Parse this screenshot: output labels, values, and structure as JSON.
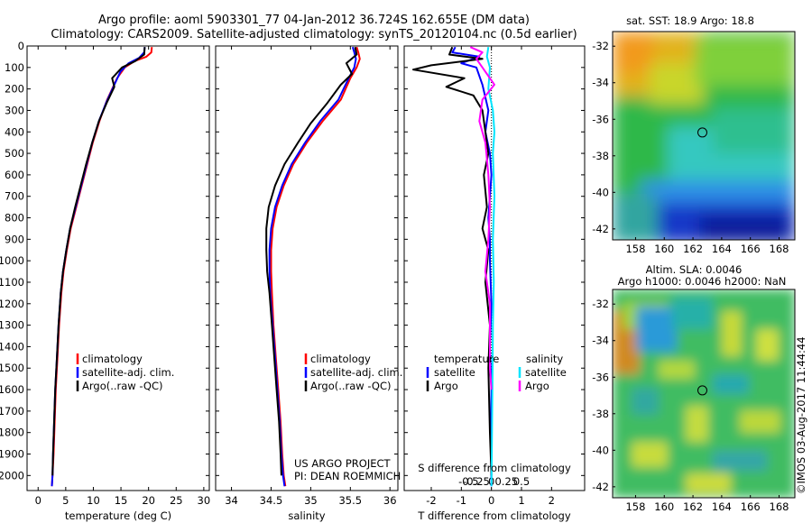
{
  "header": {
    "line1": "Argo profile: aoml 5903301_77 04-Jan-2012 36.724S 162.655E (DM data)",
    "line2": "Climatology: CARS2009. Satellite-adjusted climatology: synTS_20120104.nc (0.5d earlier)"
  },
  "side_label": "©IMOS 03-Aug-2017 11:44:44",
  "project_label": {
    "line1": "US ARGO PROJECT",
    "line2": "PI: DEAN ROEMMICH"
  },
  "colors": {
    "climatology": "#ff0000",
    "satellite": "#0000ff",
    "argo": "#000000",
    "t_sat": "#0000ff",
    "t_argo": "#000000",
    "s_sat": "#00e5ff",
    "s_argo": "#ff00ff"
  },
  "chart_data": [
    {
      "id": "temperature",
      "type": "line",
      "xlabel": "temperature (deg C)",
      "ylabel": "",
      "xlim": [
        -2,
        31
      ],
      "ylim": [
        2070,
        0
      ],
      "xticks": [
        0,
        5,
        10,
        15,
        20,
        25,
        30
      ],
      "yticks": [
        0,
        100,
        200,
        300,
        400,
        500,
        600,
        700,
        800,
        900,
        1000,
        1100,
        1200,
        1300,
        1400,
        1500,
        1600,
        1700,
        1800,
        1900,
        2000
      ],
      "legend": [
        "climatology",
        "satellite-adj. clim.",
        "Argo(..raw -QC)"
      ],
      "series": [
        {
          "name": "climatology",
          "color": "#ff0000",
          "x": [
            20.6,
            20.5,
            19.6,
            17.5,
            15.7,
            14.3,
            12.5,
            11.1,
            9.9,
            8.9,
            7.9,
            6.9,
            5.9,
            5.2,
            4.6,
            4.2,
            3.8,
            3.5,
            3.2,
            3.0,
            2.8,
            2.6,
            2.5
          ],
          "y": [
            5,
            30,
            50,
            70,
            100,
            150,
            250,
            350,
            450,
            550,
            650,
            750,
            850,
            950,
            1050,
            1150,
            1300,
            1450,
            1600,
            1750,
            1900,
            2000,
            2050
          ]
        },
        {
          "name": "satellite-adj. clim.",
          "color": "#0000ff",
          "x": [
            19.3,
            19.2,
            18.3,
            16.4,
            14.9,
            14.0,
            12.4,
            11.0,
            9.8,
            8.8,
            7.8,
            6.8,
            5.8,
            5.1,
            4.5,
            4.1,
            3.7,
            3.4,
            3.1,
            2.9,
            2.7,
            2.6,
            2.5
          ],
          "y": [
            5,
            30,
            55,
            80,
            120,
            170,
            260,
            350,
            450,
            550,
            650,
            750,
            850,
            950,
            1050,
            1150,
            1300,
            1450,
            1600,
            1750,
            1900,
            2000,
            2050
          ]
        },
        {
          "name": "Argo(..raw -QC)",
          "color": "#000000",
          "x": [
            19.3,
            19.2,
            17.6,
            15.2,
            13.4,
            13.8,
            12.5,
            11.0,
            9.8,
            8.7,
            7.7,
            6.7,
            5.8,
            5.1,
            4.5,
            4.1,
            3.7,
            3.4,
            3.1,
            2.9,
            2.7,
            2.6
          ],
          "y": [
            5,
            40,
            70,
            100,
            150,
            190,
            260,
            350,
            450,
            550,
            650,
            750,
            850,
            950,
            1050,
            1150,
            1300,
            1450,
            1600,
            1750,
            1900,
            2000
          ]
        }
      ]
    },
    {
      "id": "salinity",
      "type": "line",
      "xlabel": "salinity",
      "ylabel": "",
      "xlim": [
        33.8,
        36.1
      ],
      "ylim": [
        2070,
        0
      ],
      "xticks": [
        34,
        34.5,
        35,
        35.5,
        36
      ],
      "xticklabels": [
        "34",
        "34.5",
        "35",
        "35.5",
        "36"
      ],
      "legend": [
        "climatology",
        "satellite-adj. clim.",
        "Argo(..raw -QC)"
      ],
      "series": [
        {
          "name": "climatology",
          "color": "#ff0000",
          "x": [
            35.58,
            35.6,
            35.62,
            35.58,
            35.5,
            35.38,
            35.15,
            34.95,
            34.78,
            34.66,
            34.57,
            34.52,
            34.5,
            34.5,
            34.51,
            34.53,
            34.56,
            34.59,
            34.62,
            34.64,
            34.66,
            34.68
          ],
          "y": [
            5,
            30,
            60,
            100,
            150,
            250,
            350,
            450,
            550,
            650,
            750,
            850,
            950,
            1050,
            1150,
            1300,
            1450,
            1600,
            1750,
            1900,
            2000,
            2050
          ]
        },
        {
          "name": "satellite-adj. clim.",
          "color": "#0000ff",
          "x": [
            35.53,
            35.55,
            35.57,
            35.55,
            35.48,
            35.35,
            35.12,
            34.93,
            34.76,
            34.64,
            34.55,
            34.5,
            34.48,
            34.48,
            34.49,
            34.52,
            34.55,
            34.58,
            34.61,
            34.63,
            34.65,
            34.67
          ],
          "y": [
            5,
            30,
            60,
            100,
            150,
            250,
            350,
            450,
            550,
            650,
            750,
            850,
            950,
            1050,
            1150,
            1300,
            1450,
            1600,
            1750,
            1900,
            2000,
            2050
          ]
        },
        {
          "name": "Argo(..raw -QC)",
          "color": "#000000",
          "x": [
            35.56,
            35.58,
            35.45,
            35.52,
            35.38,
            35.2,
            35.0,
            34.84,
            34.67,
            34.55,
            34.47,
            34.44,
            34.44,
            34.45,
            34.48,
            34.51,
            34.54,
            34.57,
            34.6,
            34.62,
            34.63
          ],
          "y": [
            5,
            40,
            80,
            130,
            180,
            270,
            360,
            450,
            550,
            650,
            750,
            850,
            950,
            1050,
            1150,
            1300,
            1450,
            1600,
            1750,
            1900,
            2000
          ]
        }
      ]
    },
    {
      "id": "difference",
      "type": "line",
      "xlabel": "T difference from climatology",
      "top_label": "S difference from climatology",
      "xlim": [
        -2.9,
        3.1
      ],
      "ylim": [
        2070,
        0
      ],
      "xticks": [
        -2,
        -1,
        0,
        1,
        2
      ],
      "xticklabels": [
        "-2",
        "-1",
        "0",
        "1",
        "2"
      ],
      "s_ticklabels": [
        "-0.5",
        "-0.25",
        "0",
        "0.25",
        "0.5"
      ],
      "s_scale": 0.25,
      "legend_groups": [
        "temperature",
        "salinity"
      ],
      "legend": [
        "satellite",
        "Argo",
        "satellite",
        "Argo"
      ],
      "series": [
        {
          "name": "temperature satellite",
          "color": "#0000ff",
          "x": [
            -1.2,
            -1.3,
            -0.4,
            -1.0,
            -0.5,
            -0.3,
            -0.1,
            -0.2,
            -0.05,
            0.0,
            -0.05,
            -0.1,
            -0.05,
            -0.05,
            0.0,
            -0.05,
            0.0,
            -0.02,
            0.0
          ],
          "y": [
            5,
            30,
            50,
            80,
            100,
            180,
            300,
            400,
            500,
            600,
            700,
            800,
            900,
            1000,
            1200,
            1400,
            1600,
            1800,
            2050
          ]
        },
        {
          "name": "temperature Argo",
          "color": "#000000",
          "x": [
            -1.3,
            -1.4,
            -0.3,
            -2.0,
            -2.6,
            -0.9,
            -1.5,
            -0.6,
            -0.3,
            -0.2,
            -0.1,
            -0.25,
            -0.15,
            -0.3,
            -0.1,
            -0.2,
            -0.05,
            -0.1,
            -0.05,
            0.0
          ],
          "y": [
            5,
            40,
            60,
            90,
            110,
            150,
            190,
            230,
            300,
            400,
            500,
            600,
            750,
            850,
            950,
            1100,
            1300,
            1500,
            1800,
            2000
          ]
        },
        {
          "name": "salinity satellite",
          "color": "#00e5ff",
          "x": [
            -0.1,
            -0.15,
            -0.05,
            -0.1,
            0.05,
            0.1,
            0.05,
            0.1,
            0.05,
            0.08,
            0.05,
            0.04,
            0.02,
            0.0
          ],
          "y": [
            5,
            50,
            100,
            200,
            300,
            400,
            500,
            700,
            900,
            1100,
            1300,
            1500,
            1800,
            2050
          ]
        },
        {
          "name": "salinity Argo",
          "color": "#ff00ff",
          "x": [
            -0.7,
            -0.3,
            -0.5,
            -0.3,
            0.1,
            -0.3,
            -0.4,
            -0.2,
            -0.1,
            -0.05,
            -0.1,
            -0.2,
            -0.05,
            -0.05,
            0.0
          ],
          "y": [
            5,
            30,
            60,
            100,
            180,
            250,
            350,
            450,
            600,
            750,
            900,
            1050,
            1200,
            1500,
            1600
          ]
        }
      ]
    }
  ],
  "maps": [
    {
      "id": "sst-map",
      "title_lines": [
        "sat. SST: 18.9 Argo: 18.8"
      ],
      "xticks": [
        158,
        160,
        162,
        164,
        166,
        168
      ],
      "yticks": [
        -32,
        -34,
        -36,
        -38,
        -40,
        -42
      ],
      "lon": [
        156.4,
        169.1
      ],
      "lat": [
        -31.2,
        -42.6
      ],
      "marker": {
        "lon": 162.655,
        "lat": -36.724
      }
    },
    {
      "id": "sla-map",
      "title_lines": [
        "Altim. SLA: 0.0046",
        "Argo h1000: 0.0046 h2000: NaN"
      ],
      "xticks": [
        158,
        160,
        162,
        164,
        166,
        168
      ],
      "yticks": [
        -32,
        -34,
        -36,
        -38,
        -40,
        -42
      ],
      "lon": [
        156.4,
        169.1
      ],
      "lat": [
        -31.2,
        -42.6
      ],
      "marker": {
        "lon": 162.655,
        "lat": -36.724
      }
    }
  ]
}
